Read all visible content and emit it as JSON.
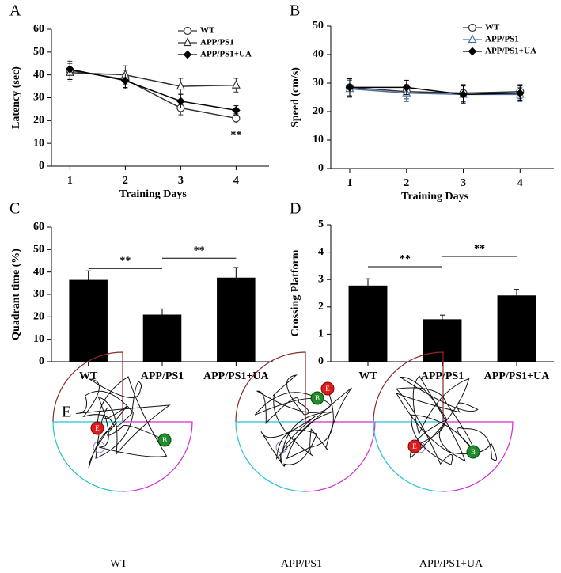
{
  "chart_data": [
    {
      "type": "line",
      "panel": "A",
      "ylabel": "Latency (sec)",
      "xlabel": "Training Days",
      "categories": [
        "1",
        "2",
        "3",
        "4"
      ],
      "ylim": [
        0,
        60
      ],
      "yticks": [
        0,
        10,
        20,
        30,
        40,
        50,
        60
      ],
      "legend": "upper right",
      "grid": false,
      "annotation": "**",
      "series": [
        {
          "name": "WT",
          "color": "#333333",
          "marker": "circle",
          "values": [
            42,
            38,
            25.5,
            21
          ],
          "errors": [
            4,
            4,
            3,
            2
          ]
        },
        {
          "name": "APP/PS1",
          "color": "#333333",
          "marker": "triangle",
          "values": [
            41,
            40,
            35,
            35.5
          ],
          "errors": [
            4,
            4,
            3.5,
            3
          ]
        },
        {
          "name": "APP/PS1+UA",
          "color": "#000000",
          "marker": "diamond",
          "values": [
            42.5,
            37.5,
            28.5,
            24.5
          ],
          "errors": [
            4.5,
            3,
            3,
            2
          ]
        }
      ]
    },
    {
      "type": "line",
      "panel": "B",
      "ylabel": "Speed (cm/s)",
      "xlabel": "Training Days",
      "categories": [
        "1",
        "2",
        "3",
        "4"
      ],
      "ylim": [
        0,
        50
      ],
      "yticks": [
        0,
        10,
        20,
        30,
        40,
        50
      ],
      "legend": "upper right",
      "grid": false,
      "series": [
        {
          "name": "WT",
          "color": "#333333",
          "marker": "circle",
          "values": [
            28.5,
            27,
            26.5,
            27
          ],
          "errors": [
            3,
            2.5,
            3,
            2.5
          ]
        },
        {
          "name": "APP/PS1",
          "color": "#4a6fa5",
          "marker": "triangle",
          "values": [
            28,
            26.5,
            26,
            26
          ],
          "errors": [
            3,
            3,
            3,
            2.5
          ]
        },
        {
          "name": "APP/PS1+UA",
          "color": "#000000",
          "marker": "diamond",
          "values": [
            28.5,
            28.5,
            26,
            26.5
          ],
          "errors": [
            3,
            2.5,
            3,
            2.5
          ]
        }
      ]
    },
    {
      "type": "bar",
      "panel": "C",
      "ylabel": "Quadrant time (%)",
      "categories": [
        "WT",
        "APP/PS1",
        "APP/PS1+UA"
      ],
      "values": [
        36.5,
        21,
        37.5
      ],
      "errors": [
        4,
        2.5,
        4.5
      ],
      "color": "#000000",
      "ylim": [
        0,
        60
      ],
      "yticks": [
        0,
        10,
        20,
        30,
        40,
        50,
        60
      ],
      "grid": false,
      "comparisons": [
        {
          "label": "**",
          "groups": [
            "WT",
            "APP/PS1"
          ]
        },
        {
          "label": "**",
          "groups": [
            "APP/PS1",
            "APP/PS1+UA"
          ]
        }
      ]
    },
    {
      "type": "bar",
      "panel": "D",
      "ylabel": "Crossing Platform",
      "categories": [
        "WT",
        "APP/PS1",
        "APP/PS1+UA"
      ],
      "values": [
        2.78,
        1.55,
        2.42
      ],
      "errors": [
        0.25,
        0.15,
        0.22
      ],
      "color": "#000000",
      "ylim": [
        0,
        5
      ],
      "yticks": [
        0,
        1,
        2,
        3,
        4,
        5
      ],
      "grid": false,
      "comparisons": [
        {
          "label": "**",
          "groups": [
            "WT",
            "APP/PS1"
          ]
        },
        {
          "label": "**",
          "groups": [
            "APP/PS1",
            "APP/PS1+UA"
          ]
        }
      ]
    }
  ],
  "panel_e": {
    "label": "E",
    "start_marker": "B",
    "end_marker": "E",
    "trials": [
      {
        "label": "WT"
      },
      {
        "label": "APP/PS1"
      },
      {
        "label": "APP/PS1+UA"
      }
    ]
  }
}
